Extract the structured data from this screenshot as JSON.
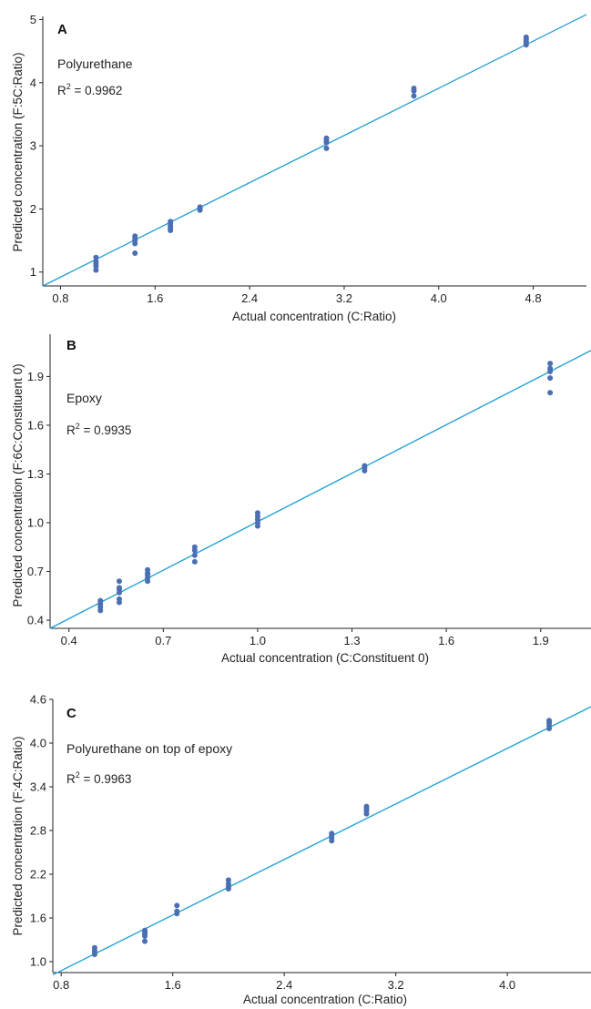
{
  "colors": {
    "line": "#1a9fd6",
    "point": "#4a6fb3",
    "axis": "#222222"
  },
  "chart_data": [
    {
      "panel": "A",
      "type": "scatter",
      "material": "Polyurethane",
      "r2_prefix": "R",
      "r2_sup": "2",
      "r2_value": " = 0.9962",
      "xlabel": "Actual concentration (C:Ratio)",
      "ylabel": "Predicted concentration (F:5C:Ratio)",
      "xlim": [
        0.65,
        5.25
      ],
      "ylim": [
        0.78,
        5.05
      ],
      "xticks": [
        0.8,
        1.6,
        2.4,
        3.2,
        4.0,
        4.8
      ],
      "xtick_labels": [
        "0.8",
        "1.6",
        "2.4",
        "3.2",
        "4.0",
        "4.8"
      ],
      "yticks": [
        1,
        2,
        3,
        4,
        5
      ],
      "ytick_labels": [
        "1",
        "2",
        "3",
        "4",
        "5"
      ],
      "fit_line": {
        "x": [
          0.65,
          5.25
        ],
        "y": [
          0.78,
          5.08
        ]
      },
      "x": [
        1.1,
        1.1,
        1.1,
        1.1,
        1.1,
        1.43,
        1.43,
        1.43,
        1.43,
        1.43,
        1.73,
        1.73,
        1.73,
        1.73,
        1.73,
        1.98,
        1.98,
        1.98,
        3.05,
        3.05,
        3.05,
        3.05,
        3.79,
        3.79,
        3.79,
        4.74,
        4.74,
        4.74,
        4.74,
        4.74
      ],
      "y": [
        1.03,
        1.09,
        1.13,
        1.17,
        1.23,
        1.3,
        1.45,
        1.5,
        1.53,
        1.57,
        1.66,
        1.7,
        1.73,
        1.77,
        1.8,
        1.98,
        2.01,
        2.03,
        2.96,
        3.05,
        3.08,
        3.12,
        3.79,
        3.87,
        3.91,
        4.6,
        4.63,
        4.66,
        4.69,
        4.72
      ]
    },
    {
      "panel": "B",
      "type": "scatter",
      "material": "Epoxy",
      "r2_prefix": "R",
      "r2_sup": "2",
      "r2_value": " = 0.9935",
      "xlabel": "Actual concentration (C:Constituent 0)",
      "ylabel": "Predicted concentration (F:6C:Constituent 0)",
      "xlim": [
        0.34,
        2.06
      ],
      "ylim": [
        0.35,
        2.16
      ],
      "xticks": [
        0.4,
        0.7,
        1.0,
        1.3,
        1.6,
        1.9
      ],
      "xtick_labels": [
        "0.4",
        "0.7",
        "1.0",
        "1.3",
        "1.6",
        "1.9"
      ],
      "yticks": [
        0.4,
        0.7,
        1.0,
        1.3,
        1.6,
        1.9
      ],
      "ytick_labels": [
        "0.4",
        "0.7",
        "1.0",
        "1.3",
        "1.6",
        "1.9"
      ],
      "fit_line": {
        "x": [
          0.34,
          2.06
        ],
        "y": [
          0.35,
          2.06
        ]
      },
      "x": [
        0.5,
        0.5,
        0.5,
        0.5,
        0.56,
        0.56,
        0.56,
        0.56,
        0.56,
        0.56,
        0.65,
        0.65,
        0.65,
        0.65,
        0.65,
        0.8,
        0.8,
        0.8,
        0.8,
        1.0,
        1.0,
        1.0,
        1.0,
        1.0,
        1.34,
        1.34,
        1.34,
        1.93,
        1.93,
        1.93,
        1.93,
        1.93
      ],
      "y": [
        0.46,
        0.48,
        0.5,
        0.52,
        0.51,
        0.53,
        0.57,
        0.59,
        0.6,
        0.64,
        0.64,
        0.66,
        0.68,
        0.69,
        0.71,
        0.76,
        0.8,
        0.83,
        0.85,
        0.98,
        1.0,
        1.02,
        1.04,
        1.06,
        1.32,
        1.34,
        1.35,
        1.8,
        1.89,
        1.93,
        1.95,
        1.98
      ]
    },
    {
      "panel": "C",
      "type": "scatter",
      "material": "Polyurethane on top of epoxy",
      "r2_prefix": "R",
      "r2_sup": "2",
      "r2_value": " = 0.9963",
      "xlabel": "Actual concentration (C:Ratio)",
      "ylabel": "Predicted concentration (F:4C:Ratio)",
      "xlim": [
        0.74,
        4.6
      ],
      "ylim": [
        0.85,
        4.6
      ],
      "xticks": [
        0.8,
        1.6,
        2.4,
        3.2,
        4.0
      ],
      "xtick_labels": [
        "0.8",
        "1.6",
        "2.4",
        "3.2",
        "4.0"
      ],
      "yticks": [
        1.0,
        1.6,
        2.2,
        2.8,
        3.4,
        4.0,
        4.6
      ],
      "ytick_labels": [
        "1.0",
        "1.6",
        "2.2",
        "2.8",
        "3.4",
        "4.0",
        "4.6"
      ],
      "fit_line": {
        "x": [
          0.74,
          4.6
        ],
        "y": [
          0.82,
          4.5
        ]
      },
      "x": [
        1.04,
        1.04,
        1.04,
        1.04,
        1.4,
        1.4,
        1.4,
        1.4,
        1.4,
        1.63,
        1.63,
        1.63,
        2.0,
        2.0,
        2.0,
        2.0,
        2.74,
        2.74,
        2.74,
        2.74,
        2.99,
        2.99,
        2.99,
        2.99,
        4.3,
        4.3,
        4.3,
        4.3
      ],
      "y": [
        1.1,
        1.12,
        1.15,
        1.19,
        1.28,
        1.35,
        1.38,
        1.41,
        1.43,
        1.66,
        1.69,
        1.77,
        2.0,
        2.03,
        2.07,
        2.12,
        2.66,
        2.7,
        2.73,
        2.76,
        3.03,
        3.07,
        3.1,
        3.13,
        4.2,
        4.24,
        4.28,
        4.31
      ]
    }
  ]
}
